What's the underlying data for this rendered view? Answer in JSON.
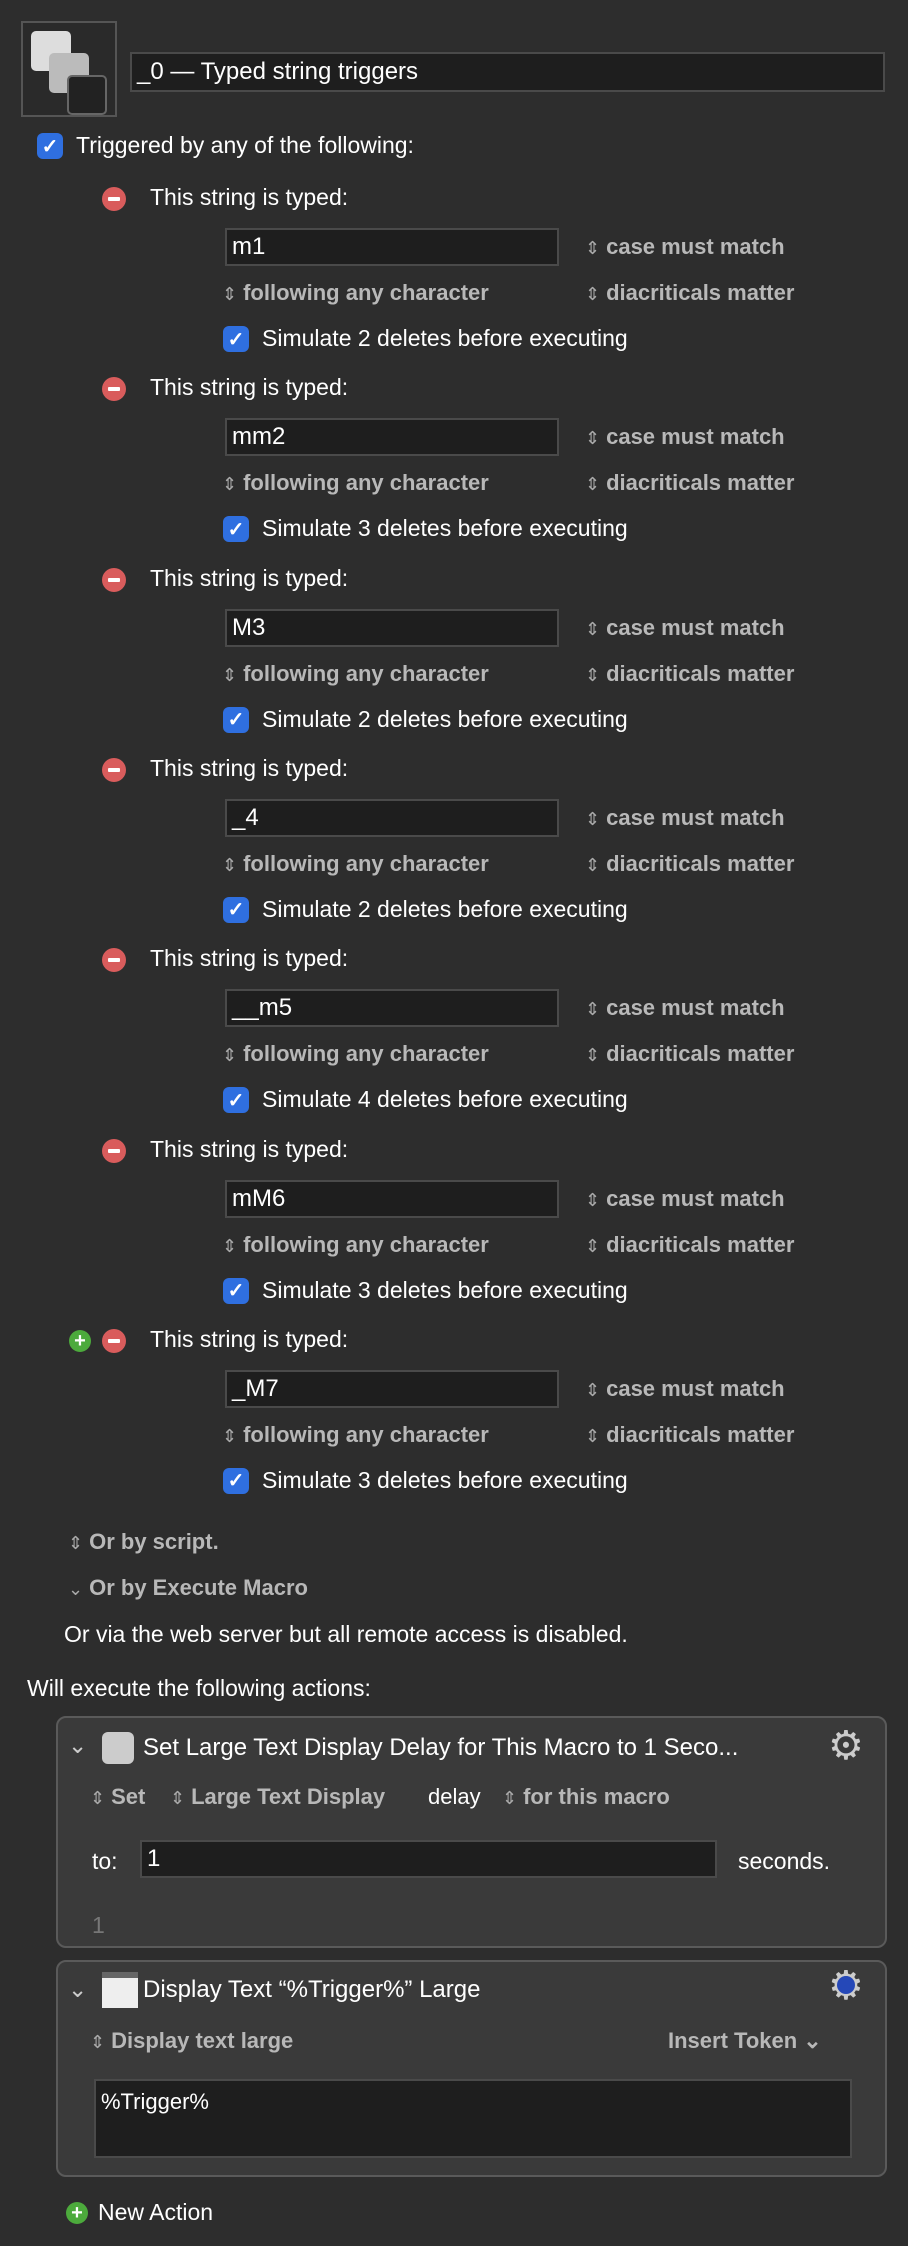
{
  "macro": {
    "title": "_0 — Typed string triggers",
    "icon": "keyboard-keys-icon"
  },
  "triggered_label": "Triggered by any of the following:",
  "triggered_checked": true,
  "triggers": [
    {
      "label": "This string is typed:",
      "value": "m1",
      "case": "case must match",
      "following": "following any character",
      "diacriticals": "diacriticals matter",
      "simulate": "Simulate 2 deletes before executing",
      "checked": true
    },
    {
      "label": "This string is typed:",
      "value": "mm2",
      "case": "case must match",
      "following": "following any character",
      "diacriticals": "diacriticals matter",
      "simulate": "Simulate 3 deletes before executing",
      "checked": true
    },
    {
      "label": "This string is typed:",
      "value": "M3",
      "case": "case must match",
      "following": "following any character",
      "diacriticals": "diacriticals matter",
      "simulate": "Simulate 2 deletes before executing",
      "checked": true
    },
    {
      "label": "This string is typed:",
      "value": "_4",
      "case": "case must match",
      "following": "following any character",
      "diacriticals": "diacriticals matter",
      "simulate": "Simulate 2 deletes before executing",
      "checked": true
    },
    {
      "label": "This string is typed:",
      "value": "__m5",
      "case": "case must match",
      "following": "following any character",
      "diacriticals": "diacriticals matter",
      "simulate": "Simulate 4 deletes before executing",
      "checked": true
    },
    {
      "label": "This string is typed:",
      "value": "mM6",
      "case": "case must match",
      "following": "following any character",
      "diacriticals": "diacriticals matter",
      "simulate": "Simulate 3 deletes before executing",
      "checked": true
    },
    {
      "label": "This string is typed:",
      "value": "_M7",
      "case": "case must match",
      "following": "following any character",
      "diacriticals": "diacriticals matter",
      "simulate": "Simulate 3 deletes before executing",
      "checked": true
    }
  ],
  "or_by_script": "Or by script.",
  "or_by_execute_macro": "Or by Execute Macro",
  "web_server": "Or via the web server but all remote access is disabled.",
  "will_execute": "Will execute the following actions:",
  "actions": [
    {
      "title": "Set Large Text Display Delay for This Macro to 1 Seco...",
      "set": "Set",
      "target": "Large Text Display",
      "delay": "delay",
      "scope": "for this macro",
      "to_label": "to:",
      "to_value": "1",
      "unit": "seconds.",
      "result": "1"
    },
    {
      "title": "Display Text “%Trigger%” Large",
      "mode": "Display text large",
      "insert_token": "Insert Token",
      "text": "%Trigger%"
    }
  ],
  "new_action": "New Action",
  "colors": {
    "background": "#2d2d2d",
    "accent": "#2f6fe0",
    "remove": "#d95c5c",
    "add": "#4caa3c"
  }
}
